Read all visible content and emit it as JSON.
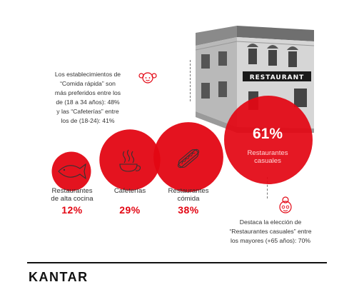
{
  "note_top": {
    "lines": [
      "Los establecimientos de",
      "“Comida rápida” son",
      "más preferidos entre los",
      "de (18 a 34 años): 48%",
      "y las “Cafeterías” entre",
      "los de (18-24): 41%"
    ]
  },
  "note_bottom": {
    "lines": [
      "Destaca la elección de",
      "“Restaurantes casuales” entre",
      "los mayores (+65 años): 70%"
    ]
  },
  "sign_text": "RESTAURANT",
  "brand": "KANTAR",
  "colors": {
    "accent": "#e30613",
    "text": "#333333",
    "rule": "#111111"
  },
  "icons": [
    "building-photo",
    "fish-icon",
    "coffee-cup-icon",
    "hot-dog-icon",
    "woman-face-icon",
    "elderly-woman-face-icon"
  ],
  "chart_data": {
    "type": "bubble",
    "unit": "%",
    "categories": [
      {
        "lines": [
          "Restaurantes",
          "de alta cocina"
        ],
        "value": 12,
        "label": "12%"
      },
      {
        "lines": [
          "Cafeterías"
        ],
        "value": 29,
        "label": "29%"
      },
      {
        "lines": [
          "Restaurantes",
          "cómida"
        ],
        "value": 38,
        "label": "38%"
      },
      {
        "lines": [
          "Restaurantes",
          "casuales"
        ],
        "value": 61,
        "label": "61%"
      }
    ]
  }
}
